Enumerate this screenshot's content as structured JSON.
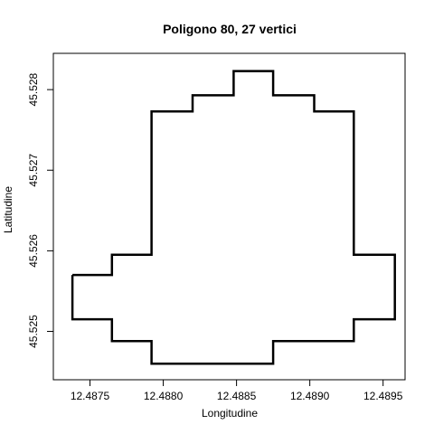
{
  "chart_data": {
    "type": "line",
    "title": "Poligono 80, 27 vertici",
    "xlabel": "Longitudine",
    "ylabel": "Latitudine",
    "xlim": [
      12.48725,
      12.48965
    ],
    "ylim": [
      45.5244,
      45.52845
    ],
    "x_ticks": [
      12.4875,
      12.488,
      12.4885,
      12.489,
      12.4895
    ],
    "x_tick_labels": [
      "12.4875",
      "12.4880",
      "12.4885",
      "12.4890",
      "12.4895"
    ],
    "y_ticks": [
      45.525,
      45.526,
      45.527,
      45.528
    ],
    "y_tick_labels": [
      "45.525",
      "45.526",
      "45.527",
      "45.528"
    ],
    "grid": false,
    "line_color": "#000000",
    "series": [
      {
        "x": [
          12.48738,
          12.48765,
          12.48765,
          12.48792,
          12.48792,
          12.4882,
          12.4882,
          12.48848,
          12.48848,
          12.48875,
          12.48875,
          12.48903,
          12.48903,
          12.4893,
          12.4893,
          12.48958,
          12.48958,
          12.4893,
          12.4893,
          12.48875,
          12.48875,
          12.48792,
          12.48792,
          12.48765,
          12.48765,
          12.48738,
          12.48738
        ],
        "y": [
          45.5257,
          45.5257,
          45.52595,
          45.52595,
          45.52773,
          45.52773,
          45.52793,
          45.52793,
          45.52823,
          45.52823,
          45.52793,
          45.52793,
          45.52773,
          45.52773,
          45.52595,
          45.52595,
          45.52515,
          45.52515,
          45.52488,
          45.52488,
          45.5246,
          45.5246,
          45.52488,
          45.52488,
          45.52515,
          45.52515,
          45.5257
        ]
      }
    ]
  }
}
